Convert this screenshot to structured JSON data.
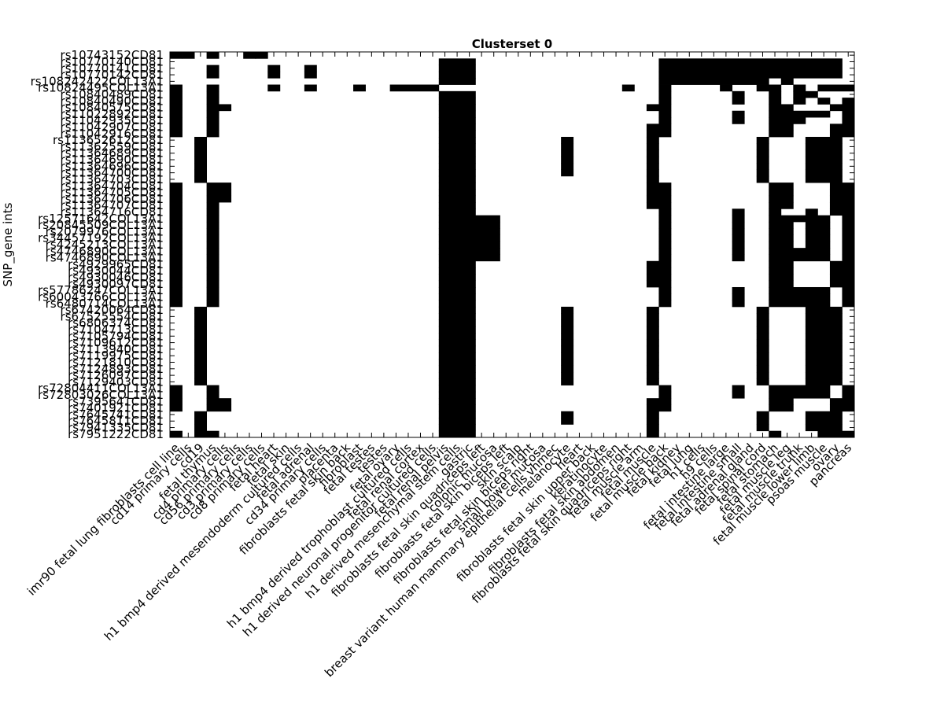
{
  "chart_data": {
    "type": "heatmap",
    "title": "Clusterset 0",
    "ylabel": "SNP_gene ints",
    "colors": {
      "on": "#000000",
      "off": "#ffffff"
    },
    "x_tick_labels": [
      "imr90 fetal lung fibroblasts cell line",
      "cd14 primary cells",
      "cd19",
      "fetal thymus",
      "cd4 primary cells",
      "cd56 primary cells",
      "cd3 primary cells",
      "cd8 primary cells",
      "fetal heart",
      "fetal skin",
      "h1 bmp4 derived mesendoderm cultured cells",
      "fetal adrenal",
      "cd34 primary cells",
      "placenta",
      "fibroblasts fetal skin back",
      "fibroblast",
      "fetal testes",
      "testes",
      "fetal ovary",
      "h1 bmp4 derived trophoblast cultured cells",
      "fetal renal cortex",
      "h1 derived neuronal progenitor cultured cells",
      "fetal renal pelvis",
      "h1 derived mesenchymal stem cells",
      "gastric",
      "fibroblasts fetal skin quadriceps left",
      "colonic mucosa",
      "fibroblasts fetal skin biceps left",
      "skin scalp",
      "fibroblasts fetal skin biceps right",
      "small bowel mucosa",
      "breast variant human mammary epithelial cells vhmec",
      "melanocyte",
      "heart",
      "fibroblasts fetal skin upper back",
      "keratinocyte",
      "fibroblasts fetal skin abdomen",
      "fibroblasts fetal skin quadriceps right",
      "fetal muscle arm",
      "fetal muscle",
      "fetal muscle back",
      "fetal kidney",
      "fetal lung",
      "h1 cells",
      "h9 cells",
      "fetal intestine large",
      "fetal intestine small",
      "fetal adrenal gland",
      "fetal spinal cord",
      "fetal stomach",
      "fetal muscle leg",
      "fetal muscle trunk",
      "fetal muscle lower limb",
      "psoas muscle",
      "ovary",
      "pancreas"
    ],
    "y_tick_labels": [
      "rs10743152CD81",
      "rs10770140CD81",
      "rs10770141CD81",
      "rs10770142CD81",
      "rs108242422COL13A1",
      "rs10824495COL13A1",
      "rs10840489CD81",
      "rs10840490CD81",
      "rs10840575CD81",
      "rs11022892CD81",
      "rs11042935CD81",
      "rs11042907CD81",
      "rs11042916CD81",
      "rs113652612CD81",
      "rs11362559CD81",
      "rs11364689CD81",
      "rs11364690CD81",
      "rs11364696CD81",
      "rs11364700CD81",
      "rs11364703CD81",
      "rs11364704CD81",
      "rs11364705CD81",
      "rs11364706CD81",
      "rs11364707CD81",
      "rs11364716CD81",
      "rs12571642COL13A1",
      "rs20845509COL13A1",
      "rs2079976COL13A1",
      "rs34457192COL13A1",
      "rs4245213COL13A1",
      "rs4746890COL13A1",
      "rs4746890COL13A1",
      "rs4929965CD81",
      "rs4930044CD81",
      "rs4930046CD81",
      "rs4930097CD81",
      "rs57786247COL13A1",
      "rs60043766COL13A1",
      "rs6480714COL13A1",
      "rs67420064CD81",
      "rs67525554CD81",
      "rs6806374CD81",
      "rs7104713CD81",
      "rs7105794CD81",
      "rs7109612CD81",
      "rs7113940CD81",
      "rs7119975CD81",
      "rs7121810CD81",
      "rs7124893CD81",
      "rs7126097CD81",
      "rs7129403CD81",
      "rs72804411COL13A1",
      "rs72803026COL13A1",
      "rs7395641CD81",
      "rs7401921CD81",
      "rs7645741CD81",
      "rs7645811CD81",
      "rs7941335CD81",
      "rs7951222CD81"
    ],
    "matrix_rle": [
      "1,0,1,1,3,0,1,1,1,0,17,1,3,0,1,1,15,1,7,1,4,0,1,1,1,0,1,1,3",
      "0,22,1,3,0,15,1,15,0,3,1,6",
      "0,3,1,1,0,4,1,1,0,2,1,1,0,10,1,3,0,15,1,15,0,3,1,6",
      "0,3,1,1,0,4,1,1,0,2,1,1,0,10,1,3,0,15,1,15,0,3,1,6",
      "0,22,1,3,0,15,1,9,0,1,1,1,0,5,1,2,0,1,1,1,0,1,1,4",
      "1,1,0,2,1,1,0,4,1,1,0,2,1,1,0,3,1,1,0,2,1,4,0,15,1,1,0,2,1,1,0,4,1,1,0,2,1,2,0,1,1,1,0,1,1,4",
      "1,1,0,2,1,1,0,18,1,3,0,15,1,1,0,5,1,1,0,2,1,1,0,1,1,2,0,3,1,4",
      "1,1,0,2,1,1,0,18,1,3,0,15,1,1,0,5,1,1,0,2,1,1,0,1,1,1,0,1,1,1,0,1,1,4",
      "1,1,0,2,1,2,0,17,1,3,0,14,1,2,0,8,1,2,0,3,1,6",
      "1,1,0,2,1,1,0,18,1,3,0,15,1,1,0,5,1,1,0,2,1,5,0,1,1,4",
      "1,1,0,2,1,1,0,18,1,3,0,15,1,1,0,5,1,1,0,2,1,3,0,3,1,4",
      "1,1,0,2,1,1,0,18,1,3,0,14,1,2,0,8,1,2,0,3,1,6",
      "1,1,0,2,1,1,0,18,1,3,0,14,1,2,0,8,1,2,0,3,1,6",
      "0,2,1,1,0,19,1,3,0,7,1,1,0,6,1,1,0,8,1,1,0,3,1,3,0,2,1,4",
      "0,2,1,1,0,19,1,3,0,7,1,1,0,6,1,1,0,8,1,1,0,3,1,3,0,2,1,4",
      "0,2,1,1,0,19,1,3,0,7,1,1,0,6,1,1,0,8,1,1,0,3,1,3,0,2,1,4",
      "0,2,1,1,0,19,1,3,0,7,1,1,0,6,1,1,0,8,1,1,0,3,1,3,0,2,1,4",
      "0,2,1,1,0,19,1,3,0,7,1,1,0,6,1,1,0,8,1,1,0,3,1,3,0,2,1,4",
      "0,2,1,1,0,19,1,3,0,7,1,1,0,6,1,1,0,8,1,1,0,3,1,3,0,2,1,4",
      "0,2,1,1,0,19,1,3,0,14,1,1,0,8,1,1,0,3,1,3,0,2,1,4",
      "1,1,0,2,1,2,0,17,1,3,0,14,1,2,0,8,1,2,0,3,1,6",
      "1,1,0,2,1,2,0,17,1,3,0,14,1,2,0,8,1,2,0,3,1,6",
      "1,1,0,2,1,2,0,17,1,3,0,14,1,2,0,8,1,2,0,3,1,6",
      "1,1,0,2,1,1,0,18,1,3,0,14,1,2,0,8,1,2,0,3,1,6",
      "1,1,0,2,1,1,0,18,1,3,0,15,1,1,0,5,1,1,0,2,1,1,0,2,1,1,0,1,1,4",
      "1,1,0,2,1,1,0,18,1,5,0,13,1,1,0,5,1,1,0,2,1,5,0,1,1,4",
      "1,1,0,2,1,1,0,18,1,5,0,13,1,1,0,5,1,1,0,2,1,2,0,1,1,2,0,1,1,4",
      "1,1,0,2,1,1,0,18,1,5,0,13,1,1,0,5,1,1,0,2,1,2,0,1,1,2,0,1,1,4",
      "1,1,0,2,1,1,0,18,1,5,0,13,1,1,0,5,1,1,0,2,1,2,0,1,1,2,0,1,1,4",
      "1,1,0,2,1,1,0,18,1,5,0,13,1,1,0,5,1,1,0,2,1,2,0,1,1,2,0,1,1,4",
      "1,1,0,2,1,1,0,18,1,5,0,13,1,1,0,5,1,1,0,2,1,5,0,1,1,4",
      "1,1,0,2,1,1,0,18,1,5,0,13,1,1,0,5,1,1,0,2,1,5,0,1,1,4",
      "1,1,0,2,1,1,0,18,1,3,0,14,1,2,0,8,1,2,0,3,1,6",
      "1,1,0,2,1,1,0,18,1,3,0,14,1,2,0,8,1,2,0,3,1,6",
      "1,1,0,2,1,1,0,18,1,3,0,14,1,2,0,8,1,2,0,3,1,6",
      "1,1,0,2,1,1,0,18,1,3,0,14,1,2,0,8,1,2,0,3,1,6",
      "1,1,0,2,1,1,0,18,1,3,0,15,1,1,0,5,1,1,0,2,1,5,0,1,1,4",
      "1,1,0,2,1,1,0,18,1,3,0,15,1,1,0,5,1,1,0,2,1,5,0,1,1,4",
      "1,1,0,2,1,1,0,18,1,3,0,15,1,1,0,5,1,1,0,2,1,5,0,1,1,4",
      "0,2,1,1,0,19,1,3,0,7,1,1,0,6,1,1,0,8,1,1,0,3,1,3,0,2,1,4",
      "0,2,1,1,0,19,1,3,0,7,1,1,0,6,1,1,0,8,1,1,0,3,1,3,0,2,1,4",
      "0,2,1,1,0,19,1,3,0,7,1,1,0,6,1,1,0,8,1,1,0,3,1,3,0,2,1,4",
      "0,2,1,1,0,19,1,3,0,7,1,1,0,6,1,1,0,8,1,1,0,3,1,3,0,2,1,4",
      "0,2,1,1,0,19,1,3,0,7,1,1,0,6,1,1,0,8,1,1,0,3,1,3,0,2,1,4",
      "0,2,1,1,0,19,1,3,0,7,1,1,0,6,1,1,0,8,1,1,0,3,1,3,0,2,1,4",
      "0,2,1,1,0,19,1,3,0,7,1,1,0,6,1,1,0,8,1,1,0,3,1,3,0,2,1,4",
      "0,2,1,1,0,19,1,3,0,7,1,1,0,6,1,1,0,8,1,1,0,3,1,3,0,2,1,4",
      "0,2,1,1,0,19,1,3,0,7,1,1,0,6,1,1,0,8,1,1,0,3,1,3,0,2,1,4",
      "0,2,1,1,0,19,1,3,0,7,1,1,0,6,1,1,0,8,1,1,0,3,1,3,0,2,1,4",
      "0,2,1,1,0,19,1,3,0,7,1,1,0,6,1,1,0,8,1,1,0,3,1,3,0,2,1,4",
      "0,2,1,1,0,19,1,3,0,7,1,1,0,6,1,1,0,8,1,1,0,3,1,3,0,2,1,4",
      "1,1,0,2,1,1,0,18,1,3,0,15,1,1,0,5,1,1,0,2,1,5,0,1,1,4",
      "1,1,0,2,1,1,0,18,1,3,0,15,1,1,0,5,1,1,0,2,1,5,0,1,1,4",
      "1,1,0,2,1,2,0,17,1,3,0,14,1,2,0,8,1,2,0,3,1,6",
      "1,1,0,2,1,2,0,17,1,3,0,14,1,2,0,8,1,2,0,3,1,6",
      "0,2,1,1,0,19,1,3,0,7,1,1,0,6,1,1,0,8,1,1,0,3,1,3,0,2,1,4",
      "0,2,1,1,0,19,1,3,0,7,1,1,0,6,1,1,0,8,1,1,0,3,1,3,0,2,1,4",
      "0,2,1,1,0,19,1,3,0,14,1,1,0,8,1,1,0,3,1,3,0,2,1,4",
      "1,1,0,1,1,2,0,18,1,3,0,14,1,1,0,9,1,1,0,3,1,3,0,2,1,4"
    ]
  }
}
